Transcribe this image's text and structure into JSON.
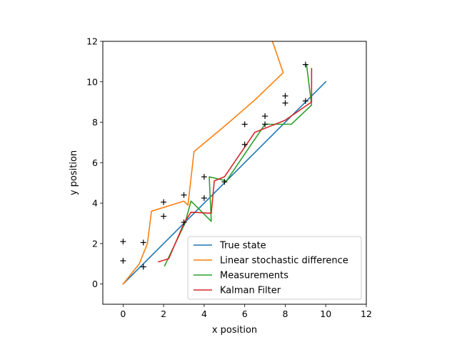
{
  "chart_data": {
    "type": "line",
    "title": "",
    "xlabel": "x position",
    "ylabel": "y position",
    "xlim": [
      -1,
      12
    ],
    "ylim": [
      -1,
      12
    ],
    "xticks": [
      0,
      2,
      4,
      6,
      8,
      10,
      12
    ],
    "yticks": [
      0,
      2,
      4,
      6,
      8,
      10,
      12
    ],
    "grid": false,
    "legend_position": "lower-right",
    "series": [
      {
        "name": "True state",
        "color": "#1f77b4",
        "style": "line",
        "x": [
          0,
          10
        ],
        "y": [
          0,
          10
        ]
      },
      {
        "name": "Linear stochastic difference",
        "color": "#ff7f0e",
        "style": "line",
        "x": [
          0,
          0.8,
          1.2,
          1.3,
          1.4,
          3.0,
          3.2,
          3.5,
          5.0,
          6.5,
          7.9,
          7.3
        ],
        "y": [
          0,
          1.0,
          2.0,
          2.8,
          3.6,
          4.1,
          3.9,
          6.55,
          7.8,
          9.1,
          10.45,
          12.2
        ]
      },
      {
        "name": "Measurements",
        "color": "#2ca02c",
        "style": "line",
        "x": [
          2.05,
          3.05,
          3.35,
          4.35,
          4.25,
          5.1,
          7.0,
          8.3,
          9.3,
          9.05
        ],
        "y": [
          0.9,
          3.0,
          4.1,
          3.1,
          5.3,
          5.1,
          7.9,
          7.9,
          8.85,
          10.85
        ]
      },
      {
        "name": "Kalman Filter",
        "color": "#d62728",
        "style": "line",
        "x": [
          1.75,
          2.25,
          3.0,
          3.35,
          4.35,
          4.5,
          5.0,
          6.5,
          8.0,
          9.3,
          9.3
        ],
        "y": [
          1.1,
          1.25,
          3.0,
          3.55,
          3.5,
          5.1,
          5.3,
          7.5,
          8.1,
          9.0,
          10.65
        ]
      },
      {
        "name": "",
        "color": "#000000",
        "style": "marker-plus",
        "x": [
          0,
          0,
          1,
          1,
          2,
          2,
          3,
          3,
          4,
          4,
          5,
          6,
          6,
          7,
          7,
          8,
          8,
          9,
          9
        ],
        "y": [
          2.1,
          1.15,
          2.05,
          0.85,
          4.05,
          3.35,
          4.4,
          3.05,
          5.3,
          4.25,
          5.05,
          7.9,
          6.9,
          8.3,
          7.9,
          9.3,
          8.95,
          9.05,
          10.85
        ]
      }
    ],
    "legend": [
      {
        "label": "True state",
        "color": "#1f77b4"
      },
      {
        "label": "Linear stochastic difference",
        "color": "#ff7f0e"
      },
      {
        "label": "Measurements",
        "color": "#2ca02c"
      },
      {
        "label": "Kalman Filter",
        "color": "#d62728"
      }
    ]
  }
}
